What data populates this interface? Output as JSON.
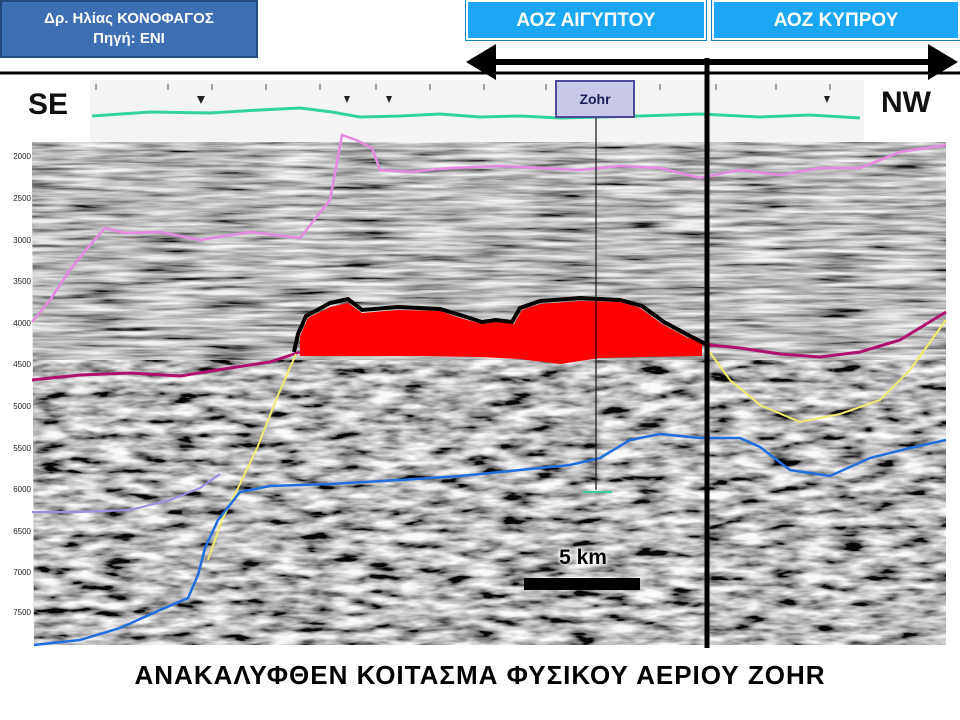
{
  "credit": {
    "line1": "Δρ. Ηλίας ΚΟΝΟΦΑΓΟΣ",
    "line2": "Πηγή: ENI"
  },
  "eez": {
    "egypt": "ΑΟΖ ΑΙΓΥΠΤΟΥ",
    "cyprus": "ΑΟΖ ΚΥΠΡΟΥ"
  },
  "section": {
    "left_label": "SE",
    "right_label": "NW",
    "well_name": "Zohr",
    "scale_label": "5 km",
    "depth_labels": [
      "2000",
      "2500",
      "3000",
      "3500",
      "4000",
      "4500",
      "5000",
      "5500",
      "6000",
      "6500",
      "7000",
      "7500"
    ]
  },
  "caption": "ΑΝΑΚΑΛΥΦΘΕΝ ΚΟΙΤΑΣΜΑ ΦΥΣΙΚΟΥ ΑΕΡΙΟΥ ZOHR",
  "colors": {
    "credit_bg": "#3e6fb5",
    "eez_bg": "#1ca7f4",
    "reservoir": "#ff0000",
    "seafloor": "#32d39a",
    "horizon_pink": "#e58ae0",
    "horizon_magenta": "#b0106e",
    "horizon_blue": "#1f6fe0",
    "horizon_yellow": "#f2ea6a",
    "horizon_lavender": "#9a8ee0",
    "seismic_gray": "#8a8a8a"
  }
}
